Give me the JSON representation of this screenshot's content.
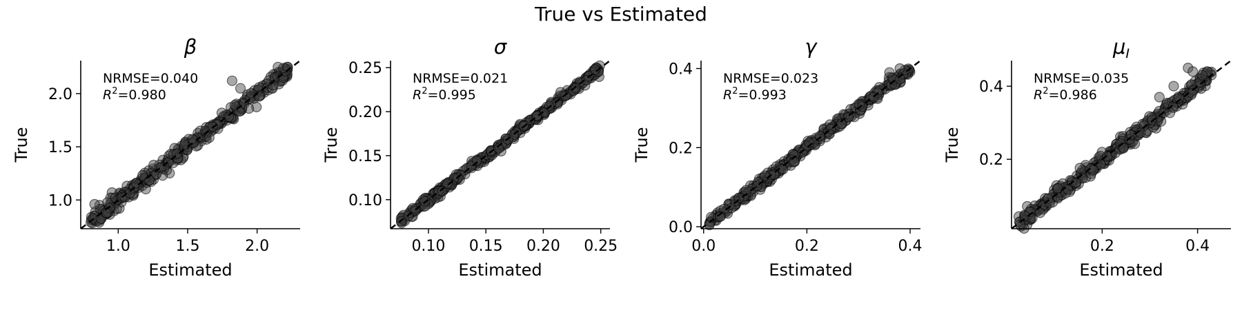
{
  "figure": {
    "title": "True vs Estimated"
  },
  "chart_data": [
    {
      "type": "scatter",
      "title": "β",
      "title_sub": "",
      "xlabel": "Estimated",
      "ylabel": "True",
      "xlim": [
        0.73,
        2.31
      ],
      "ylim": [
        0.73,
        2.31
      ],
      "xticks": [
        1.0,
        1.5,
        2.0
      ],
      "yticks": [
        1.0,
        1.5,
        2.0
      ],
      "xtick_labels": [
        "1.0",
        "1.5",
        "2.0"
      ],
      "ytick_labels": [
        "1.0",
        "1.5",
        "2.0"
      ],
      "metrics": {
        "nrmse": "NRMSE=0.040",
        "r2_value": "=0.980"
      },
      "points": {
        "x_range": [
          0.8,
          2.22
        ],
        "noise_sd": 0.035,
        "count": 320,
        "extra": [
          [
            2.15,
            2.25
          ],
          [
            2.19,
            2.24
          ],
          [
            2.22,
            2.25
          ],
          [
            1.82,
            2.12
          ],
          [
            1.88,
            2.05
          ],
          [
            1.32,
            1.23
          ],
          [
            0.83,
            0.96
          ]
        ]
      },
      "grid": false,
      "identity_line": true
    },
    {
      "type": "scatter",
      "title": "σ",
      "title_sub": "",
      "xlabel": "Estimated",
      "ylabel": "True",
      "xlim": [
        0.067,
        0.258
      ],
      "ylim": [
        0.067,
        0.258
      ],
      "xticks": [
        0.1,
        0.15,
        0.2,
        0.25
      ],
      "yticks": [
        0.1,
        0.15,
        0.2,
        0.25
      ],
      "xtick_labels": [
        "0.10",
        "0.15",
        "0.20",
        "0.25"
      ],
      "ytick_labels": [
        "0.10",
        "0.15",
        "0.20",
        "0.25"
      ],
      "metrics": {
        "nrmse": "NRMSE=0.021",
        "r2_value": "=0.995"
      },
      "points": {
        "x_range": [
          0.076,
          0.25
        ],
        "noise_sd": 0.0025,
        "count": 320,
        "extra": [
          [
            0.215,
            0.222
          ],
          [
            0.245,
            0.248
          ]
        ]
      },
      "grid": false,
      "identity_line": true
    },
    {
      "type": "scatter",
      "title": "γ",
      "title_sub": "",
      "xlabel": "Estimated",
      "ylabel": "True",
      "xlim": [
        -0.005,
        0.42
      ],
      "ylim": [
        -0.005,
        0.42
      ],
      "xticks": [
        0.0,
        0.2,
        0.4
      ],
      "yticks": [
        0.0,
        0.2,
        0.4
      ],
      "xtick_labels": [
        "0.0",
        "0.2",
        "0.4"
      ],
      "ytick_labels": [
        "0.0",
        "0.2",
        "0.4"
      ],
      "metrics": {
        "nrmse": "NRMSE=0.023",
        "r2_value": "=0.993"
      },
      "points": {
        "x_range": [
          0.01,
          0.4
        ],
        "noise_sd": 0.007,
        "count": 320,
        "extra": [
          [
            0.38,
            0.4
          ],
          [
            0.36,
            0.39
          ]
        ]
      },
      "grid": false,
      "identity_line": true
    },
    {
      "type": "scatter",
      "title": "μ",
      "title_sub": "I",
      "xlabel": "Estimated",
      "ylabel": "True",
      "xlim": [
        0.01,
        0.47
      ],
      "ylim": [
        0.01,
        0.47
      ],
      "xticks": [
        0.2,
        0.4
      ],
      "yticks": [
        0.2,
        0.4
      ],
      "xtick_labels": [
        "0.2",
        "0.4"
      ],
      "ytick_labels": [
        "0.2",
        "0.4"
      ],
      "metrics": {
        "nrmse": "NRMSE=0.035",
        "r2_value": "=0.986"
      },
      "points": {
        "x_range": [
          0.025,
          0.43
        ],
        "noise_sd": 0.011,
        "count": 320,
        "extra": [
          [
            0.38,
            0.45
          ],
          [
            0.39,
            0.44
          ],
          [
            0.42,
            0.44
          ],
          [
            0.35,
            0.4
          ],
          [
            0.32,
            0.37
          ],
          [
            0.41,
            0.43
          ]
        ]
      },
      "grid": false,
      "identity_line": true
    }
  ]
}
